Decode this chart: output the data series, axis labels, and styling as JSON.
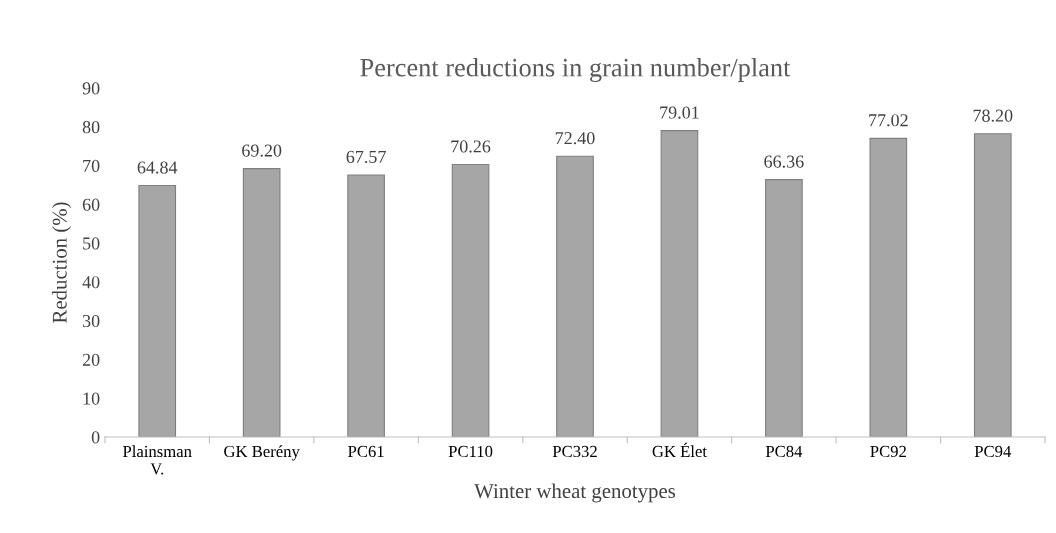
{
  "chart_data": {
    "type": "bar",
    "title": "Percent reductions in grain number/plant",
    "xlabel": "Winter wheat genotypes",
    "ylabel": "Reduction (%)",
    "categories": [
      "Plainsman V.",
      "GK Berény",
      "PC61",
      "PC110",
      "PC332",
      "GK Élet",
      "PC84",
      "PC92",
      "PC94"
    ],
    "values": [
      64.84,
      69.2,
      67.57,
      70.26,
      72.4,
      79.01,
      66.36,
      77.02,
      78.2
    ],
    "value_labels": [
      "64.84",
      "69.20",
      "67.57",
      "70.26",
      "72.40",
      "79.01",
      "66.36",
      "77.02",
      "78.20"
    ],
    "color": "#a6a6a6",
    "ylim": [
      0,
      90
    ],
    "yticks": [
      0,
      10,
      20,
      30,
      40,
      50,
      60,
      70,
      80,
      90
    ],
    "grid": false,
    "legend": false
  }
}
